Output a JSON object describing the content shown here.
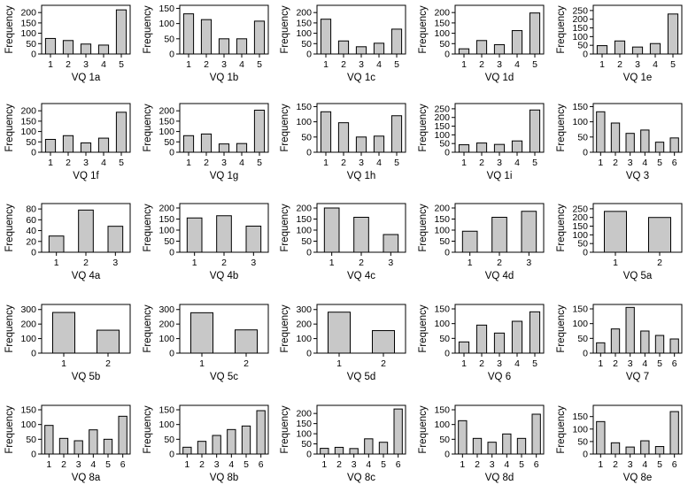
{
  "ylabel_text": "Frequency",
  "chart_data": [
    {
      "type": "bar",
      "xlabel": "VQ 1a",
      "categories": [
        "1",
        "2",
        "3",
        "4",
        "5"
      ],
      "values": [
        75,
        65,
        48,
        43,
        213
      ],
      "ylim": [
        0,
        235
      ],
      "yticks": [
        0,
        50,
        100,
        150,
        200
      ]
    },
    {
      "type": "bar",
      "xlabel": "VQ 1b",
      "categories": [
        "1",
        "2",
        "3",
        "4",
        "5"
      ],
      "values": [
        132,
        113,
        50,
        50,
        108
      ],
      "ylim": [
        0,
        160
      ],
      "yticks": [
        0,
        50,
        100,
        150
      ]
    },
    {
      "type": "bar",
      "xlabel": "VQ 1c",
      "categories": [
        "1",
        "2",
        "3",
        "4",
        "5"
      ],
      "values": [
        168,
        63,
        35,
        52,
        120
      ],
      "ylim": [
        0,
        235
      ],
      "yticks": [
        0,
        50,
        100,
        150,
        200
      ]
    },
    {
      "type": "bar",
      "xlabel": "VQ 1d",
      "categories": [
        "1",
        "2",
        "3",
        "4",
        "5"
      ],
      "values": [
        25,
        65,
        45,
        113,
        198
      ],
      "ylim": [
        0,
        235
      ],
      "yticks": [
        0,
        50,
        100,
        150,
        200
      ]
    },
    {
      "type": "bar",
      "xlabel": "VQ 1e",
      "categories": [
        "1",
        "2",
        "3",
        "4",
        "5"
      ],
      "values": [
        48,
        75,
        40,
        60,
        230
      ],
      "ylim": [
        0,
        280
      ],
      "yticks": [
        0,
        50,
        100,
        150,
        200,
        250
      ]
    },
    {
      "type": "bar",
      "xlabel": "VQ 1f",
      "categories": [
        "1",
        "2",
        "3",
        "4",
        "5"
      ],
      "values": [
        62,
        80,
        45,
        68,
        193
      ],
      "ylim": [
        0,
        235
      ],
      "yticks": [
        0,
        50,
        100,
        150,
        200
      ]
    },
    {
      "type": "bar",
      "xlabel": "VQ 1g",
      "categories": [
        "1",
        "2",
        "3",
        "4",
        "5"
      ],
      "values": [
        80,
        88,
        40,
        42,
        203
      ],
      "ylim": [
        0,
        235
      ],
      "yticks": [
        0,
        50,
        100,
        150,
        200
      ]
    },
    {
      "type": "bar",
      "xlabel": "VQ 1h",
      "categories": [
        "1",
        "2",
        "3",
        "4",
        "5"
      ],
      "values": [
        133,
        97,
        50,
        53,
        120
      ],
      "ylim": [
        0,
        160
      ],
      "yticks": [
        0,
        50,
        100,
        150
      ]
    },
    {
      "type": "bar",
      "xlabel": "VQ 1i",
      "categories": [
        "1",
        "2",
        "3",
        "4",
        "5"
      ],
      "values": [
        43,
        53,
        45,
        65,
        243
      ],
      "ylim": [
        0,
        280
      ],
      "yticks": [
        0,
        50,
        100,
        150,
        200,
        250
      ]
    },
    {
      "type": "bar",
      "xlabel": "VQ 3",
      "categories": [
        "1",
        "2",
        "3",
        "4",
        "5",
        "6"
      ],
      "values": [
        133,
        96,
        62,
        73,
        33,
        47
      ],
      "ylim": [
        0,
        160
      ],
      "yticks": [
        0,
        50,
        100,
        150
      ]
    },
    {
      "type": "bar",
      "xlabel": "VQ 4a",
      "categories": [
        "1",
        "2",
        "3"
      ],
      "values": [
        30,
        78,
        48
      ],
      "ylim": [
        0,
        90
      ],
      "yticks": [
        0,
        20,
        40,
        60,
        80
      ]
    },
    {
      "type": "bar",
      "xlabel": "VQ 4b",
      "categories": [
        "1",
        "2",
        "3"
      ],
      "values": [
        155,
        165,
        118
      ],
      "ylim": [
        0,
        220
      ],
      "yticks": [
        0,
        50,
        100,
        150,
        200
      ]
    },
    {
      "type": "bar",
      "xlabel": "VQ 4c",
      "categories": [
        "1",
        "2",
        "3"
      ],
      "values": [
        200,
        158,
        80
      ],
      "ylim": [
        0,
        220
      ],
      "yticks": [
        0,
        50,
        100,
        150,
        200
      ]
    },
    {
      "type": "bar",
      "xlabel": "VQ 4d",
      "categories": [
        "1",
        "2",
        "3"
      ],
      "values": [
        95,
        158,
        185
      ],
      "ylim": [
        0,
        220
      ],
      "yticks": [
        0,
        50,
        100,
        150,
        200
      ]
    },
    {
      "type": "bar",
      "xlabel": "VQ 5a",
      "categories": [
        "1",
        "2"
      ],
      "values": [
        235,
        200
      ],
      "ylim": [
        0,
        280
      ],
      "yticks": [
        0,
        50,
        100,
        150,
        200,
        250
      ]
    },
    {
      "type": "bar",
      "xlabel": "VQ 5b",
      "categories": [
        "1",
        "2"
      ],
      "values": [
        280,
        158
      ],
      "ylim": [
        0,
        335
      ],
      "yticks": [
        0,
        100,
        200,
        300
      ]
    },
    {
      "type": "bar",
      "xlabel": "VQ 5c",
      "categories": [
        "1",
        "2"
      ],
      "values": [
        278,
        160
      ],
      "ylim": [
        0,
        335
      ],
      "yticks": [
        0,
        100,
        200,
        300
      ]
    },
    {
      "type": "bar",
      "xlabel": "VQ 5d",
      "categories": [
        "1",
        "2"
      ],
      "values": [
        282,
        155
      ],
      "ylim": [
        0,
        335
      ],
      "yticks": [
        0,
        100,
        200,
        300
      ]
    },
    {
      "type": "bar",
      "xlabel": "VQ 6",
      "categories": [
        "1",
        "2",
        "3",
        "4",
        "5",
        "6"
      ],
      "values": [
        38,
        95,
        68,
        108,
        140,
        0
      ],
      "ylim": [
        0,
        165
      ],
      "yticks": [
        0,
        50,
        100,
        150
      ],
      "note_hidden": false
    },
    {
      "type": "bar",
      "xlabel": "VQ 7",
      "categories": [
        "1",
        "2",
        "3",
        "4",
        "5",
        "6"
      ],
      "values": [
        35,
        82,
        155,
        75,
        60,
        48
      ],
      "ylim": [
        0,
        165
      ],
      "yticks": [
        0,
        50,
        100,
        150
      ]
    },
    {
      "type": "bar",
      "xlabel": "VQ 8a",
      "categories": [
        "1",
        "2",
        "3",
        "4",
        "5",
        "6"
      ],
      "values": [
        97,
        53,
        45,
        82,
        50,
        128
      ],
      "ylim": [
        0,
        165
      ],
      "yticks": [
        0,
        50,
        100,
        150
      ]
    },
    {
      "type": "bar",
      "xlabel": "VQ 8b",
      "categories": [
        "1",
        "2",
        "3",
        "4",
        "5",
        "6"
      ],
      "values": [
        23,
        43,
        63,
        83,
        95,
        147
      ],
      "ylim": [
        0,
        165
      ],
      "yticks": [
        0,
        50,
        100,
        150
      ]
    },
    {
      "type": "bar",
      "xlabel": "VQ 8c",
      "categories": [
        "1",
        "2",
        "3",
        "4",
        "5",
        "6"
      ],
      "values": [
        28,
        33,
        27,
        75,
        58,
        222
      ],
      "ylim": [
        0,
        240
      ],
      "yticks": [
        0,
        50,
        100,
        150,
        200
      ]
    },
    {
      "type": "bar",
      "xlabel": "VQ 8d",
      "categories": [
        "1",
        "2",
        "3",
        "4",
        "5",
        "6"
      ],
      "values": [
        113,
        53,
        40,
        68,
        53,
        135
      ],
      "ylim": [
        0,
        165
      ],
      "yticks": [
        0,
        50,
        100,
        150
      ]
    },
    {
      "type": "bar",
      "xlabel": "VQ 8e",
      "categories": [
        "1",
        "2",
        "3",
        "4",
        "5",
        "6"
      ],
      "values": [
        130,
        45,
        28,
        53,
        30,
        170
      ],
      "ylim": [
        0,
        195
      ],
      "yticks": [
        0,
        50,
        100,
        150
      ]
    }
  ]
}
